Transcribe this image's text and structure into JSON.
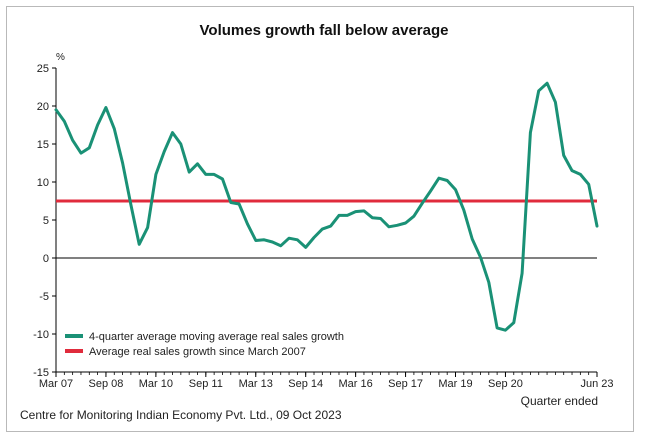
{
  "chart_data": {
    "type": "line",
    "title": "Volumes growth fall below average",
    "ylabel": "%",
    "xlabel": "Quarter ended",
    "ylim": [
      -15,
      25
    ],
    "yticks": [
      25,
      20,
      15,
      10,
      5,
      0,
      -5,
      -10,
      -15
    ],
    "xtick_labels": [
      "Mar 07",
      "Sep 08",
      "Mar 10",
      "Sep 11",
      "Mar 13",
      "Sep 14",
      "Mar 16",
      "Sep 17",
      "Mar 19",
      "Sep 20",
      "Jun 23"
    ],
    "xtick_quarters": [
      0,
      6,
      12,
      18,
      24,
      30,
      36,
      42,
      48,
      54,
      65
    ],
    "x_start": "Mar 07",
    "x_end": "Jun 23",
    "series": [
      {
        "name": "4-quarter average moving average real sales growth",
        "color": "#1a9176",
        "values": [
          19.5,
          18,
          15.5,
          13.8,
          14.5,
          17.5,
          19.8,
          17,
          12.5,
          7,
          1.8,
          4,
          11,
          14,
          16.5,
          15,
          11.3,
          12.4,
          11,
          11,
          10.4,
          7.3,
          7.1,
          4.5,
          2.3,
          2.4,
          2.1,
          1.6,
          2.6,
          2.4,
          1.4,
          2.7,
          3.8,
          4.2,
          5.6,
          5.6,
          6.1,
          6.2,
          5.3,
          5.2,
          4.1,
          4.3,
          4.6,
          5.5,
          7.2,
          8.8,
          10.5,
          10.2,
          9,
          6.3,
          2.5,
          0.1,
          -3.2,
          -9.2,
          -9.5,
          -8.5,
          -2,
          16.5,
          22,
          23,
          20.5,
          13.5,
          11.5,
          11,
          9.7,
          4.2
        ]
      },
      {
        "name": "Average real sales growth since March 2007",
        "color": "#e02b3c",
        "values": [
          7.5
        ]
      }
    ],
    "legend_position": "bottom-left",
    "grid": false
  },
  "footer": {
    "source": "Centre for Monitoring Indian Economy Pvt. Ltd., 09 Oct 2023"
  }
}
